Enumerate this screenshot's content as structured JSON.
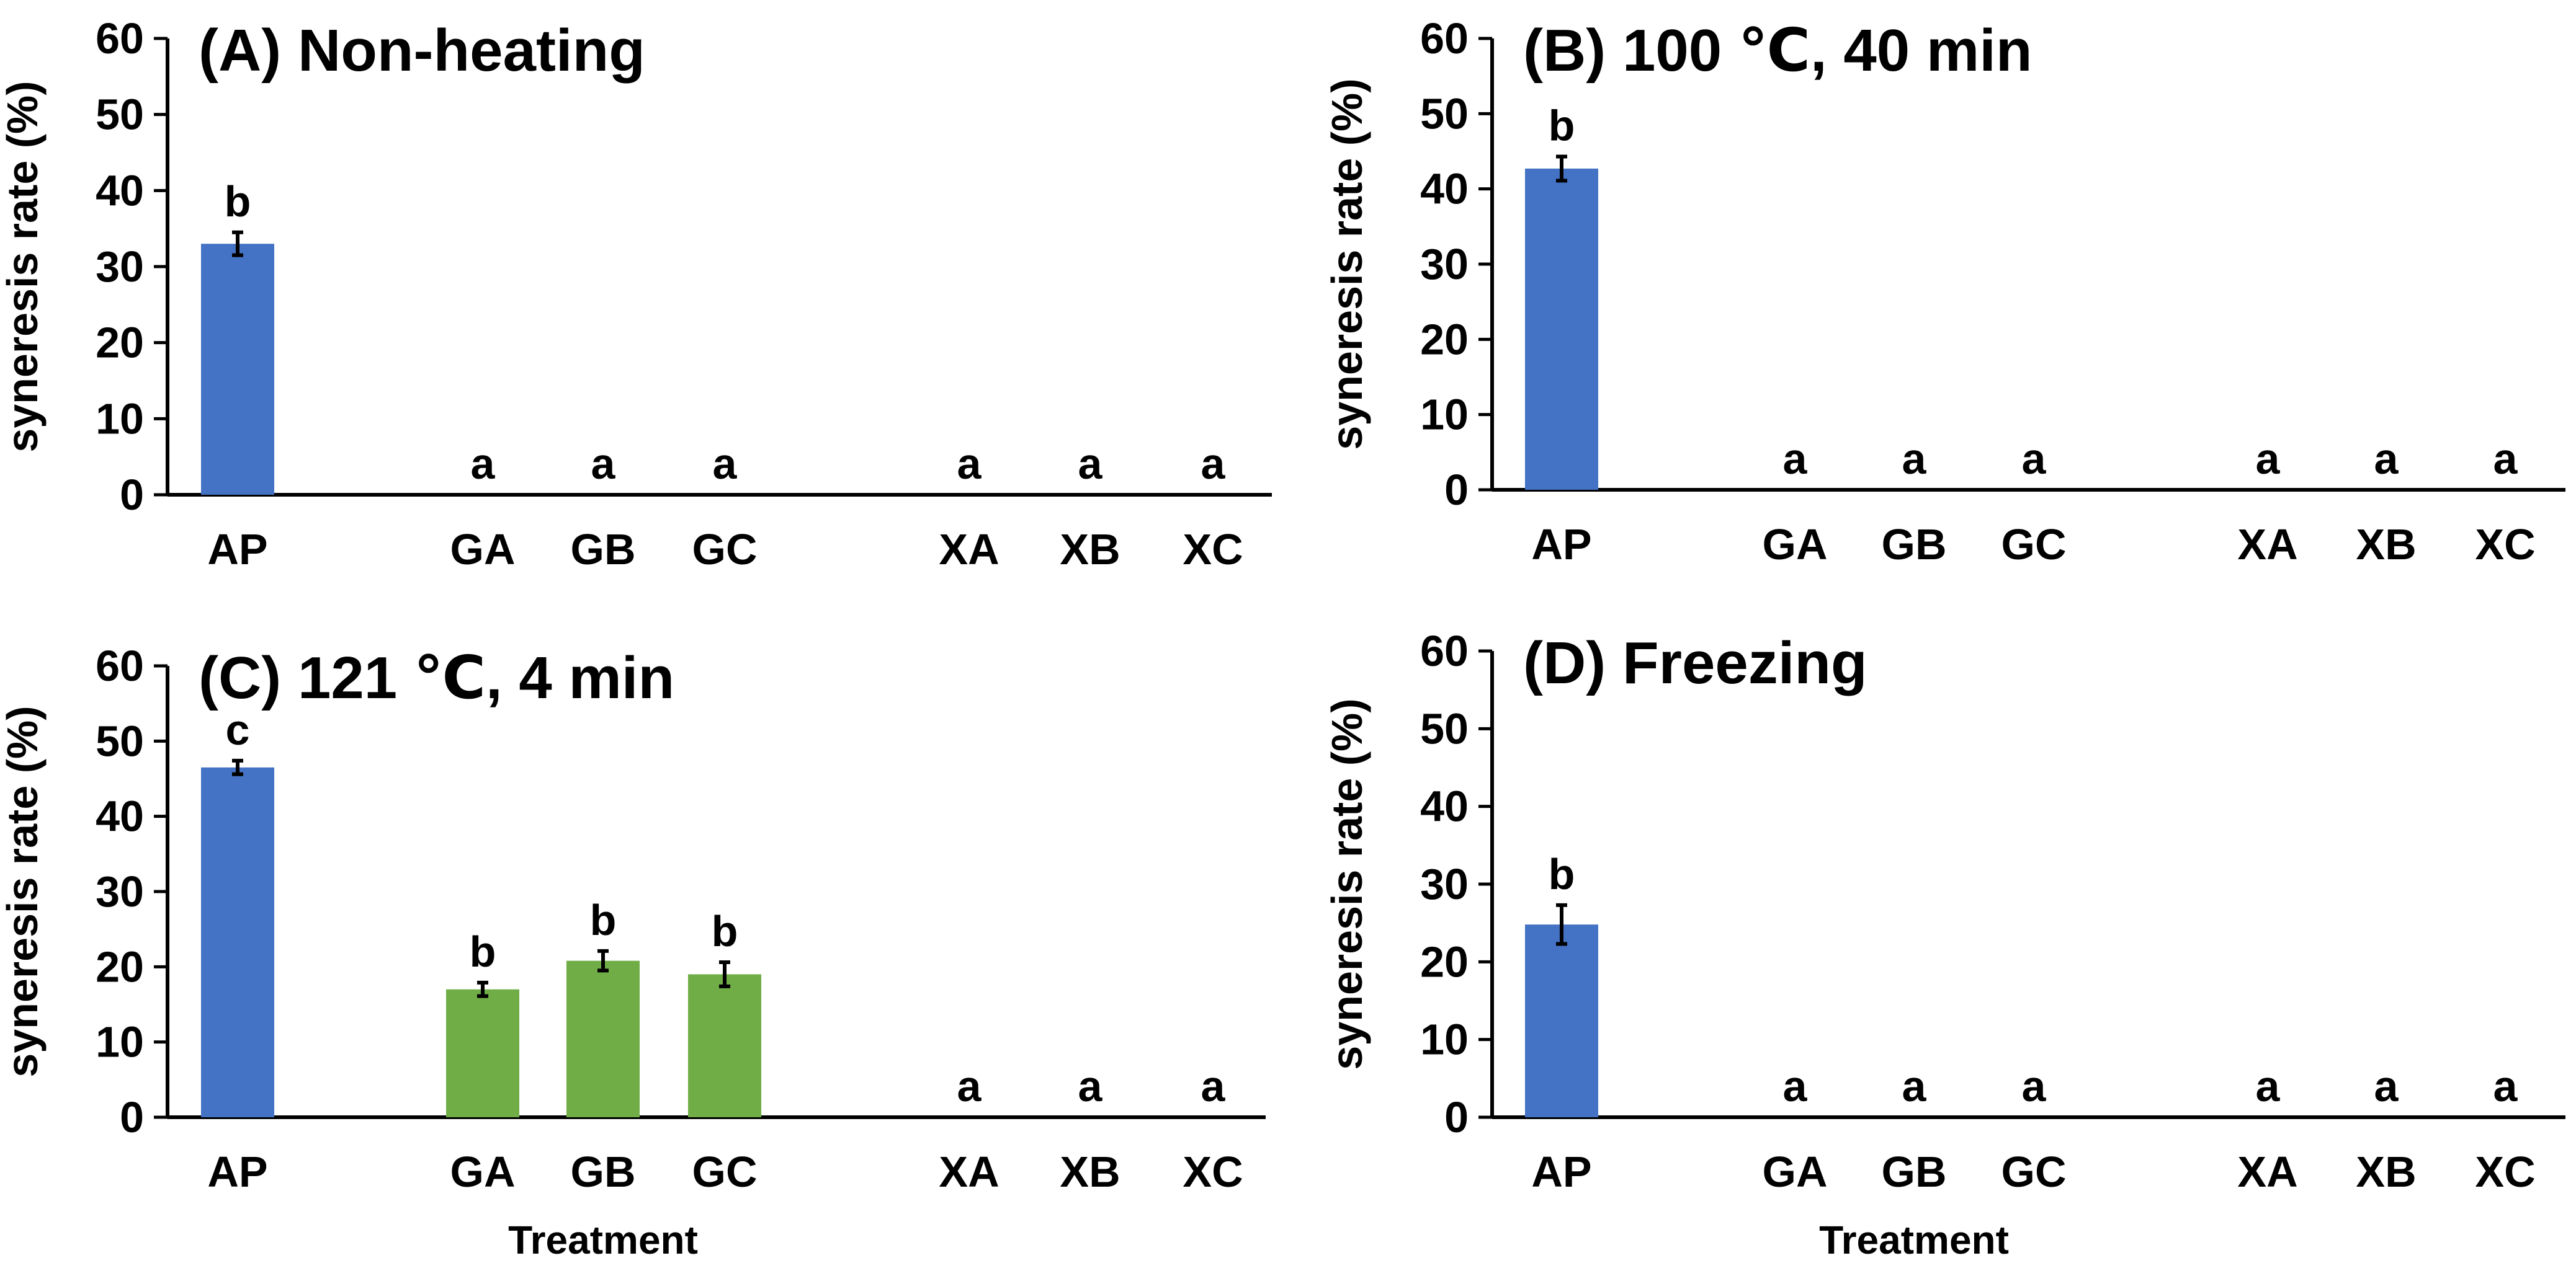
{
  "chart_data": [
    {
      "type": "bar",
      "panel": "A",
      "title": "(A) Non-heating",
      "ylabel": "syneresis rate (%)",
      "xlabel": "",
      "ylim": [
        0,
        60
      ],
      "yticks": [
        0,
        10,
        20,
        30,
        40,
        50,
        60
      ],
      "categories": [
        "AP",
        "GA",
        "GB",
        "GC",
        "XA",
        "XB",
        "XC"
      ],
      "values": [
        33,
        0,
        0,
        0,
        0,
        0,
        0
      ],
      "errors": [
        1.5,
        0,
        0,
        0,
        0,
        0,
        0
      ],
      "letters": [
        "b",
        "a",
        "a",
        "a",
        "a",
        "a",
        "a"
      ],
      "colors": [
        "#4472C4",
        "#70AD47",
        "#70AD47",
        "#70AD47",
        "#4472C4",
        "#4472C4",
        "#4472C4"
      ]
    },
    {
      "type": "bar",
      "panel": "B",
      "title": "(B) 100 ℃, 40 min",
      "ylabel": "syneresis rate (%)",
      "xlabel": "",
      "ylim": [
        0,
        60
      ],
      "yticks": [
        0,
        10,
        20,
        30,
        40,
        50,
        60
      ],
      "categories": [
        "AP",
        "GA",
        "GB",
        "GC",
        "XA",
        "XB",
        "XC"
      ],
      "values": [
        42.7,
        0,
        0,
        0,
        0,
        0,
        0
      ],
      "errors": [
        1.6,
        0,
        0,
        0,
        0,
        0,
        0
      ],
      "letters": [
        "b",
        "a",
        "a",
        "a",
        "a",
        "a",
        "a"
      ],
      "colors": [
        "#4472C4",
        "#70AD47",
        "#70AD47",
        "#70AD47",
        "#4472C4",
        "#4472C4",
        "#4472C4"
      ]
    },
    {
      "type": "bar",
      "panel": "C",
      "title": "(C) 121 ℃, 4 min",
      "ylabel": "syneresis rate (%)",
      "xlabel": "Treatment",
      "ylim": [
        0,
        60
      ],
      "yticks": [
        0,
        10,
        20,
        30,
        40,
        50,
        60
      ],
      "categories": [
        "AP",
        "GA",
        "GB",
        "GC",
        "XA",
        "XB",
        "XC"
      ],
      "values": [
        46.5,
        17,
        20.8,
        19,
        0,
        0,
        0
      ],
      "errors": [
        0.9,
        0.9,
        1.3,
        1.6,
        0,
        0,
        0
      ],
      "letters": [
        "c",
        "b",
        "b",
        "b",
        "a",
        "a",
        "a"
      ],
      "colors": [
        "#4472C4",
        "#70AD47",
        "#70AD47",
        "#70AD47",
        "#4472C4",
        "#4472C4",
        "#4472C4"
      ]
    },
    {
      "type": "bar",
      "panel": "D",
      "title": "(D) Freezing",
      "ylabel": "syneresis rate (%)",
      "xlabel": "Treatment",
      "ylim": [
        0,
        60
      ],
      "yticks": [
        0,
        10,
        20,
        30,
        40,
        50,
        60
      ],
      "categories": [
        "AP",
        "GA",
        "GB",
        "GC",
        "XA",
        "XB",
        "XC"
      ],
      "values": [
        24.8,
        0,
        0,
        0,
        0,
        0,
        0
      ],
      "errors": [
        2.5,
        0,
        0,
        0,
        0,
        0,
        0
      ],
      "letters": [
        "b",
        "a",
        "a",
        "a",
        "a",
        "a",
        "a"
      ],
      "colors": [
        "#4472C4",
        "#70AD47",
        "#70AD47",
        "#70AD47",
        "#4472C4",
        "#4472C4",
        "#4472C4"
      ]
    }
  ]
}
